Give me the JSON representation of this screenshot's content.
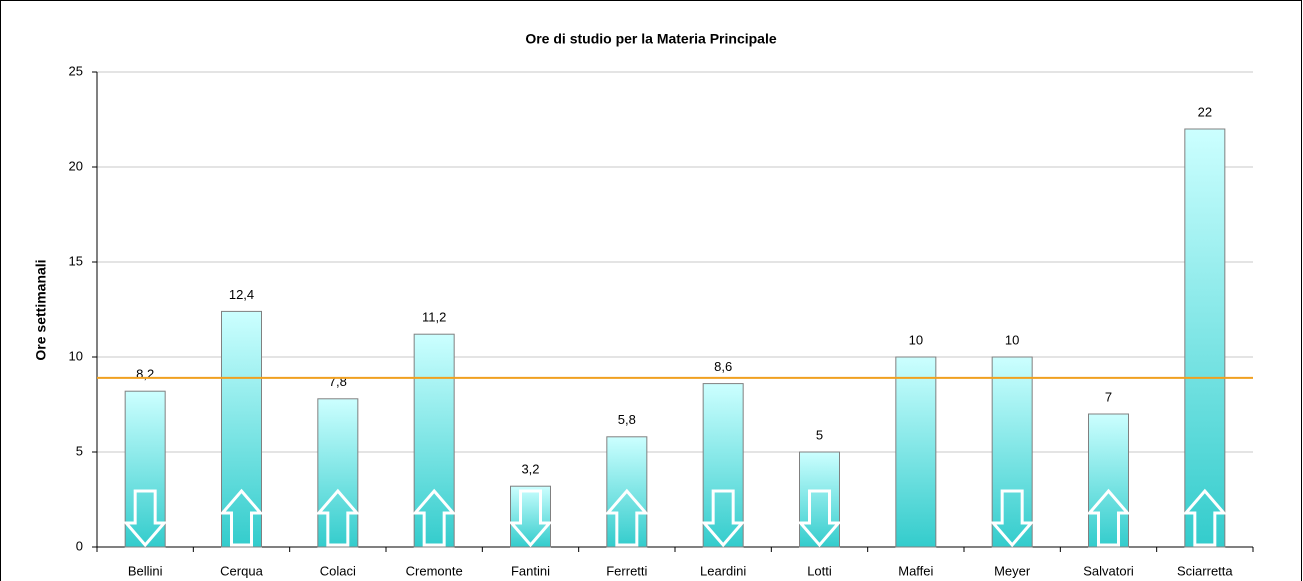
{
  "chart_data": {
    "type": "bar",
    "title": "Ore di studio per la Materia Principale",
    "y_label": "Ore settimanali",
    "categories": [
      "Bellini",
      "Cerqua",
      "Colaci",
      "Cremonte",
      "Fantini",
      "Ferretti",
      "Leardini",
      "Lotti",
      "Maffei",
      "Meyer",
      "Salvatori",
      "Sciarretta"
    ],
    "values": [
      8.2,
      12.4,
      7.8,
      11.2,
      3.2,
      5.8,
      8.6,
      5,
      10,
      10,
      7,
      22
    ],
    "value_labels": [
      "8,2",
      "12,4",
      "7,8",
      "11,2",
      "3,2",
      "5,8",
      "8,6",
      "5",
      "10",
      "10",
      "7",
      "22"
    ],
    "arrows": [
      "down",
      "up",
      "up",
      "up",
      "down",
      "up",
      "down",
      "down",
      null,
      "down",
      "up",
      "up"
    ],
    "color_top": "#ccffff",
    "color_bottom": "#33cccc",
    "reference_line": 8.9,
    "reference_color": "#f0a020",
    "ylim": [
      0,
      25
    ],
    "yticks": [
      0,
      5,
      10,
      15,
      20,
      25
    ],
    "grid": true
  }
}
